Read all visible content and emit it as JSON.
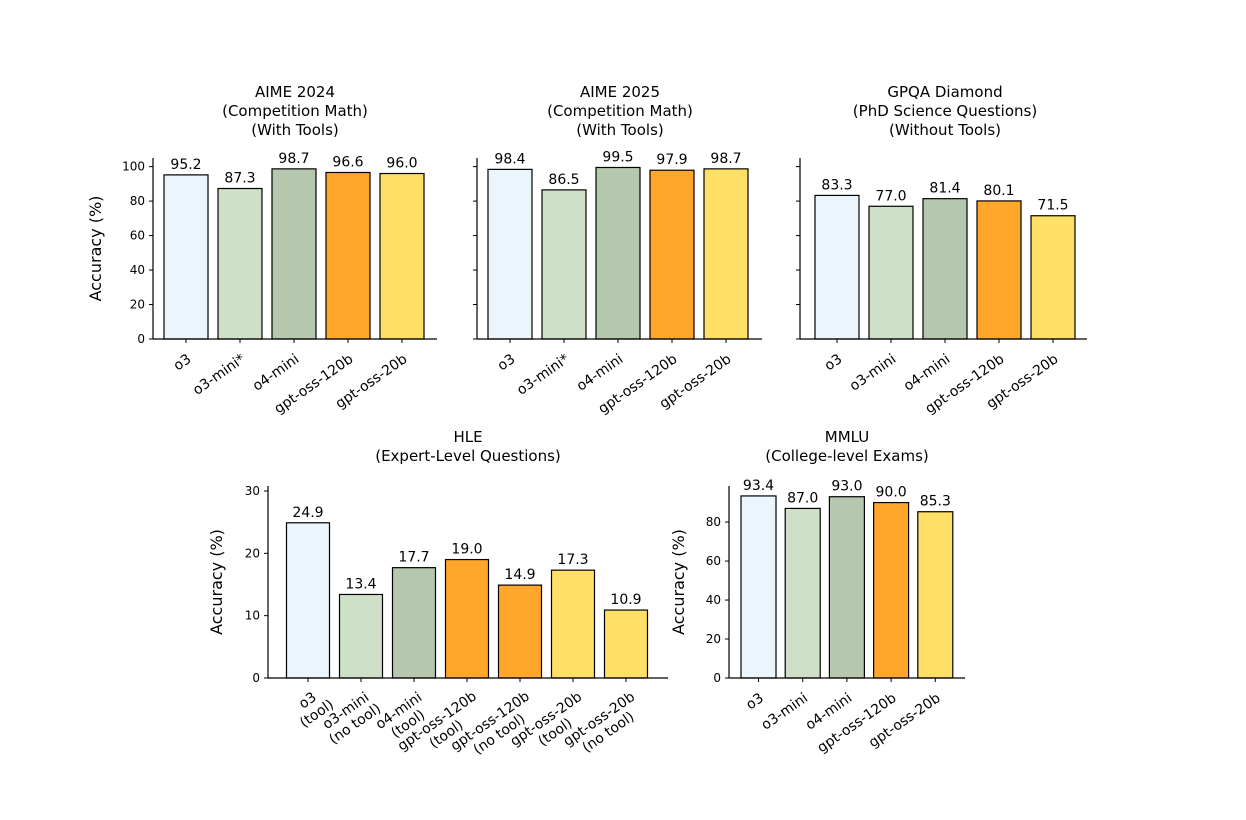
{
  "chart_data": [
    {
      "type": "bar",
      "title": [
        "AIME 2024",
        "(Competition Math)",
        "(With Tools)"
      ],
      "ylabel": "Accuracy (%)",
      "ylim": [
        0,
        105
      ],
      "yticks": [
        0,
        20,
        40,
        60,
        80,
        100
      ],
      "show_ytick_labels": true,
      "categories": [
        [
          "o3"
        ],
        [
          "o3-mini*"
        ],
        [
          "o4-mini"
        ],
        [
          "gpt-oss-120b"
        ],
        [
          "gpt-oss-20b"
        ]
      ],
      "values": [
        95.2,
        87.3,
        98.7,
        96.6,
        96.0
      ],
      "value_labels": [
        "95.2",
        "87.3",
        "98.7",
        "96.6",
        "96.0"
      ],
      "colors": [
        "#EAF5FC",
        "#CFE0C9",
        "#B5C7AD",
        "#FFA62B",
        "#FFDF66"
      ]
    },
    {
      "type": "bar",
      "title": [
        "AIME 2025",
        "(Competition Math)",
        "(With Tools)"
      ],
      "ylabel": "",
      "ylim": [
        0,
        105
      ],
      "yticks": [
        0,
        20,
        40,
        60,
        80,
        100
      ],
      "show_ytick_labels": false,
      "categories": [
        [
          "o3"
        ],
        [
          "o3-mini*"
        ],
        [
          "o4-mini"
        ],
        [
          "gpt-oss-120b"
        ],
        [
          "gpt-oss-20b"
        ]
      ],
      "values": [
        98.4,
        86.5,
        99.5,
        97.9,
        98.7
      ],
      "value_labels": [
        "98.4",
        "86.5",
        "99.5",
        "97.9",
        "98.7"
      ],
      "colors": [
        "#EAF5FC",
        "#CFE0C9",
        "#B5C7AD",
        "#FFA62B",
        "#FFDF66"
      ]
    },
    {
      "type": "bar",
      "title": [
        "GPQA Diamond",
        "(PhD Science Questions)",
        "(Without Tools)"
      ],
      "ylabel": "",
      "ylim": [
        0,
        105
      ],
      "yticks": [
        0,
        20,
        40,
        60,
        80,
        100
      ],
      "show_ytick_labels": false,
      "categories": [
        [
          "o3"
        ],
        [
          "o3-mini"
        ],
        [
          "o4-mini"
        ],
        [
          "gpt-oss-120b"
        ],
        [
          "gpt-oss-20b"
        ]
      ],
      "values": [
        83.3,
        77.0,
        81.4,
        80.1,
        71.5
      ],
      "value_labels": [
        "83.3",
        "77.0",
        "81.4",
        "80.1",
        "71.5"
      ],
      "colors": [
        "#EAF5FC",
        "#CFE0C9",
        "#B5C7AD",
        "#FFA62B",
        "#FFDF66"
      ]
    },
    {
      "type": "bar",
      "title": [
        "HLE",
        "(Expert-Level Questions)"
      ],
      "ylabel": "Accuracy (%)",
      "ylim": [
        0,
        30.8
      ],
      "yticks": [
        0,
        10,
        20,
        30
      ],
      "show_ytick_labels": true,
      "categories": [
        [
          "o3",
          "(tool)"
        ],
        [
          "o3-mini",
          "(no tool)"
        ],
        [
          "o4-mini",
          "(tool)"
        ],
        [
          "gpt-oss-120b",
          "(tool)"
        ],
        [
          "gpt-oss-120b",
          "(no tool)"
        ],
        [
          "gpt-oss-20b",
          "(tool)"
        ],
        [
          "gpt-oss-20b",
          "(no tool)"
        ]
      ],
      "values": [
        24.9,
        13.4,
        17.7,
        19.0,
        14.9,
        17.3,
        10.9
      ],
      "value_labels": [
        "24.9",
        "13.4",
        "17.7",
        "19.0",
        "14.9",
        "17.3",
        "10.9"
      ],
      "colors": [
        "#EAF5FC",
        "#CFE0C9",
        "#B5C7AD",
        "#FFA62B",
        "#FFA62B",
        "#FFDF66",
        "#FFDF66"
      ]
    },
    {
      "type": "bar",
      "title": [
        "MMLU",
        "(College-level Exams)"
      ],
      "ylabel": "Accuracy (%)",
      "ylim": [
        0,
        98.5
      ],
      "yticks": [
        0,
        20,
        40,
        60,
        80
      ],
      "show_ytick_labels": true,
      "categories": [
        [
          "o3"
        ],
        [
          "o3-mini"
        ],
        [
          "o4-mini"
        ],
        [
          "gpt-oss-120b"
        ],
        [
          "gpt-oss-20b"
        ]
      ],
      "values": [
        93.4,
        87.0,
        93.0,
        90.0,
        85.3
      ],
      "value_labels": [
        "93.4",
        "87.0",
        "93.0",
        "90.0",
        "85.3"
      ],
      "colors": [
        "#EAF5FC",
        "#CFE0C9",
        "#B5C7AD",
        "#FFA62B",
        "#FFDF66"
      ]
    }
  ]
}
